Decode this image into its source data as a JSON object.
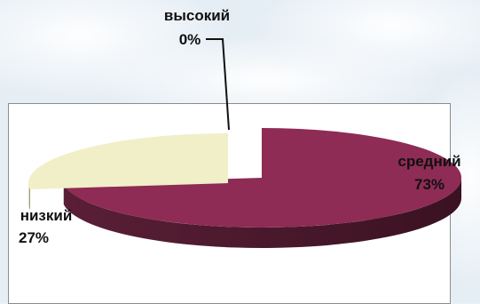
{
  "chart_data": {
    "type": "pie",
    "style": "3d-exploded",
    "slices": [
      {
        "label": "средний",
        "value": 73,
        "value_text": "73%",
        "color": "#8e2c55",
        "side_color": "#4c1a2d"
      },
      {
        "label": "низкий",
        "value": 27,
        "value_text": "27%",
        "color": "#f1efc7",
        "side_color": "#8e8e68"
      },
      {
        "label": "высокий",
        "value": 0,
        "value_text": "0%",
        "color": "#d5e3ef",
        "side_color": "#b0c0ce"
      }
    ],
    "legend": "none",
    "data_labels": "category and percent"
  }
}
